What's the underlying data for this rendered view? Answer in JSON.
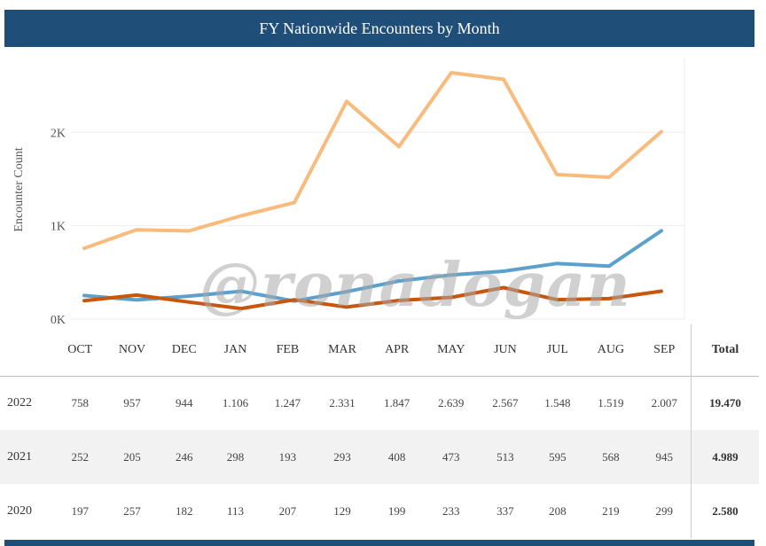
{
  "title": "FY Nationwide Encounters by Month",
  "watermark": "@ronadogan",
  "chart_data": {
    "type": "line",
    "ylabel": "Encounter Count",
    "ylim": [
      0,
      2800
    ],
    "yticks": [
      0,
      1000,
      2000
    ],
    "ytick_labels": [
      "0K",
      "1K",
      "2K"
    ],
    "grid": true,
    "categories": [
      "OCT",
      "NOV",
      "DEC",
      "JAN",
      "FEB",
      "MAR",
      "APR",
      "MAY",
      "JUN",
      "JUL",
      "AUG",
      "SEP"
    ],
    "series": [
      {
        "name": "2022",
        "color": "#f9bb7c",
        "values": [
          758,
          957,
          944,
          1106,
          1247,
          2331,
          1847,
          2639,
          2567,
          1548,
          1519,
          2007
        ]
      },
      {
        "name": "2021",
        "color": "#5ba1cc",
        "values": [
          252,
          205,
          246,
          298,
          193,
          293,
          408,
          473,
          513,
          595,
          568,
          945
        ]
      },
      {
        "name": "2020",
        "color": "#c8560d",
        "values": [
          197,
          257,
          182,
          113,
          207,
          129,
          199,
          233,
          337,
          208,
          219,
          299
        ]
      }
    ]
  },
  "table": {
    "total_header": "Total",
    "rows": [
      {
        "label": "2022",
        "cells": [
          "758",
          "957",
          "944",
          "1.106",
          "1.247",
          "2.331",
          "1.847",
          "2.639",
          "2.567",
          "1.548",
          "1.519",
          "2.007"
        ],
        "total": "19.470"
      },
      {
        "label": "2021",
        "cells": [
          "252",
          "205",
          "246",
          "298",
          "193",
          "293",
          "408",
          "473",
          "513",
          "595",
          "568",
          "945"
        ],
        "total": "4.989"
      },
      {
        "label": "2020",
        "cells": [
          "197",
          "257",
          "182",
          "113",
          "207",
          "129",
          "199",
          "233",
          "337",
          "208",
          "219",
          "299"
        ],
        "total": "2.580"
      }
    ]
  }
}
